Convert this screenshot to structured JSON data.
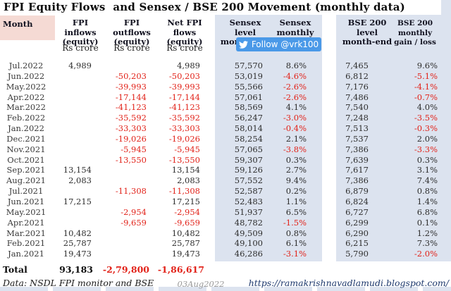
{
  "title": "FPI Equity Flows  and Sensex / BSE 200 Movement (monthly data)",
  "colors": {
    "band_blue": "#dce3ef",
    "month_header_pink": "#f5dad4",
    "negative_red": "#e2231a",
    "twitter_blue": "#4a99e8",
    "link_navy": "#1f3a6e"
  },
  "twitter_button": {
    "label": "Follow @vrk100"
  },
  "table_headers": {
    "month": "Month",
    "inflows": "FPI inflows\n(equity)",
    "outflows": "FPI outflows\n(equity)",
    "net": "Net FPI flows\n(equity)",
    "unit": "Rs crore",
    "sensex_level": "Sensex level\nmonth-end",
    "sensex_gain": "Sensex monthly\ngain / loss",
    "bse_level": "BSE 200 level\nmonth-end",
    "bse_gain": "BSE 200 monthly\ngain / loss"
  },
  "chart_data": {
    "type": "table",
    "title": "FPI Equity Flows and Sensex / BSE 200 Movement (monthly data)",
    "columns": [
      "Month",
      "FPI inflows (equity) Rs crore",
      "FPI outflows (equity) Rs crore",
      "Net FPI flows (equity) Rs crore",
      "Sensex level month-end",
      "Sensex monthly gain / loss",
      "BSE 200 level month-end",
      "BSE 200 monthly gain / loss"
    ],
    "rows": [
      {
        "month": "Jul.2022",
        "inflow": "4,989",
        "outflow": "",
        "net": "4,989",
        "sensex_level": "57,570",
        "sensex_gain": "8.6%",
        "bse_level": "7,465",
        "bse_gain": "9.6%"
      },
      {
        "month": "Jun.2022",
        "inflow": "",
        "outflow": "-50,203",
        "net": "-50,203",
        "sensex_level": "53,019",
        "sensex_gain": "-4.6%",
        "bse_level": "6,812",
        "bse_gain": "-5.1%"
      },
      {
        "month": "May.2022",
        "inflow": "",
        "outflow": "-39,993",
        "net": "-39,993",
        "sensex_level": "55,566",
        "sensex_gain": "-2.6%",
        "bse_level": "7,176",
        "bse_gain": "-4.1%"
      },
      {
        "month": "Apr.2022",
        "inflow": "",
        "outflow": "-17,144",
        "net": "-17,144",
        "sensex_level": "57,061",
        "sensex_gain": "-2.6%",
        "bse_level": "7,486",
        "bse_gain": "-0.7%"
      },
      {
        "month": "Mar.2022",
        "inflow": "",
        "outflow": "-41,123",
        "net": "-41,123",
        "sensex_level": "58,569",
        "sensex_gain": "4.1%",
        "bse_level": "7,540",
        "bse_gain": "4.0%"
      },
      {
        "month": "Feb.2022",
        "inflow": "",
        "outflow": "-35,592",
        "net": "-35,592",
        "sensex_level": "56,247",
        "sensex_gain": "-3.0%",
        "bse_level": "7,248",
        "bse_gain": "-3.5%"
      },
      {
        "month": "Jan.2022",
        "inflow": "",
        "outflow": "-33,303",
        "net": "-33,303",
        "sensex_level": "58,014",
        "sensex_gain": "-0.4%",
        "bse_level": "7,513",
        "bse_gain": "-0.3%"
      },
      {
        "month": "Dec.2021",
        "inflow": "",
        "outflow": "-19,026",
        "net": "-19,026",
        "sensex_level": "58,254",
        "sensex_gain": "2.1%",
        "bse_level": "7,537",
        "bse_gain": "2.0%"
      },
      {
        "month": "Nov.2021",
        "inflow": "",
        "outflow": "-5,945",
        "net": "-5,945",
        "sensex_level": "57,065",
        "sensex_gain": "-3.8%",
        "bse_level": "7,386",
        "bse_gain": "-3.3%"
      },
      {
        "month": "Oct.2021",
        "inflow": "",
        "outflow": "-13,550",
        "net": "-13,550",
        "sensex_level": "59,307",
        "sensex_gain": "0.3%",
        "bse_level": "7,639",
        "bse_gain": "0.3%"
      },
      {
        "month": "Sep.2021",
        "inflow": "13,154",
        "outflow": "",
        "net": "13,154",
        "sensex_level": "59,126",
        "sensex_gain": "2.7%",
        "bse_level": "7,617",
        "bse_gain": "3.1%"
      },
      {
        "month": "Aug.2021",
        "inflow": "2,083",
        "outflow": "",
        "net": "2,083",
        "sensex_level": "57,552",
        "sensex_gain": "9.4%",
        "bse_level": "7,386",
        "bse_gain": "7.4%"
      },
      {
        "month": "Jul.2021",
        "inflow": "",
        "outflow": "-11,308",
        "net": "-11,308",
        "sensex_level": "52,587",
        "sensex_gain": "0.2%",
        "bse_level": "6,879",
        "bse_gain": "0.8%"
      },
      {
        "month": "Jun.2021",
        "inflow": "17,215",
        "outflow": "",
        "net": "17,215",
        "sensex_level": "52,483",
        "sensex_gain": "1.1%",
        "bse_level": "6,824",
        "bse_gain": "1.4%"
      },
      {
        "month": "May.2021",
        "inflow": "",
        "outflow": "-2,954",
        "net": "-2,954",
        "sensex_level": "51,937",
        "sensex_gain": "6.5%",
        "bse_level": "6,727",
        "bse_gain": "6.8%"
      },
      {
        "month": "Apr.2021",
        "inflow": "",
        "outflow": "-9,659",
        "net": "-9,659",
        "sensex_level": "48,782",
        "sensex_gain": "-1.5%",
        "bse_level": "6,299",
        "bse_gain": "0.1%"
      },
      {
        "month": "Mar.2021",
        "inflow": "10,482",
        "outflow": "",
        "net": "10,482",
        "sensex_level": "49,509",
        "sensex_gain": "0.8%",
        "bse_level": "6,290",
        "bse_gain": "1.2%"
      },
      {
        "month": "Feb.2021",
        "inflow": "25,787",
        "outflow": "",
        "net": "25,787",
        "sensex_level": "49,100",
        "sensex_gain": "6.1%",
        "bse_level": "6,215",
        "bse_gain": "7.3%"
      },
      {
        "month": "Jan.2021",
        "inflow": "19,473",
        "outflow": "",
        "net": "19,473",
        "sensex_level": "46,286",
        "sensex_gain": "-3.1%",
        "bse_level": "5,790",
        "bse_gain": "-2.0%"
      }
    ],
    "total": {
      "label": "Total",
      "inflow": "93,183",
      "outflow": "-2,79,800",
      "net": "-1,86,617"
    }
  },
  "footer": {
    "source": "Data: NSDL FPI monitor and BSE",
    "date": "03Aug2022",
    "url": "https://ramakrishnavadlamudi.blogspot.com/"
  }
}
